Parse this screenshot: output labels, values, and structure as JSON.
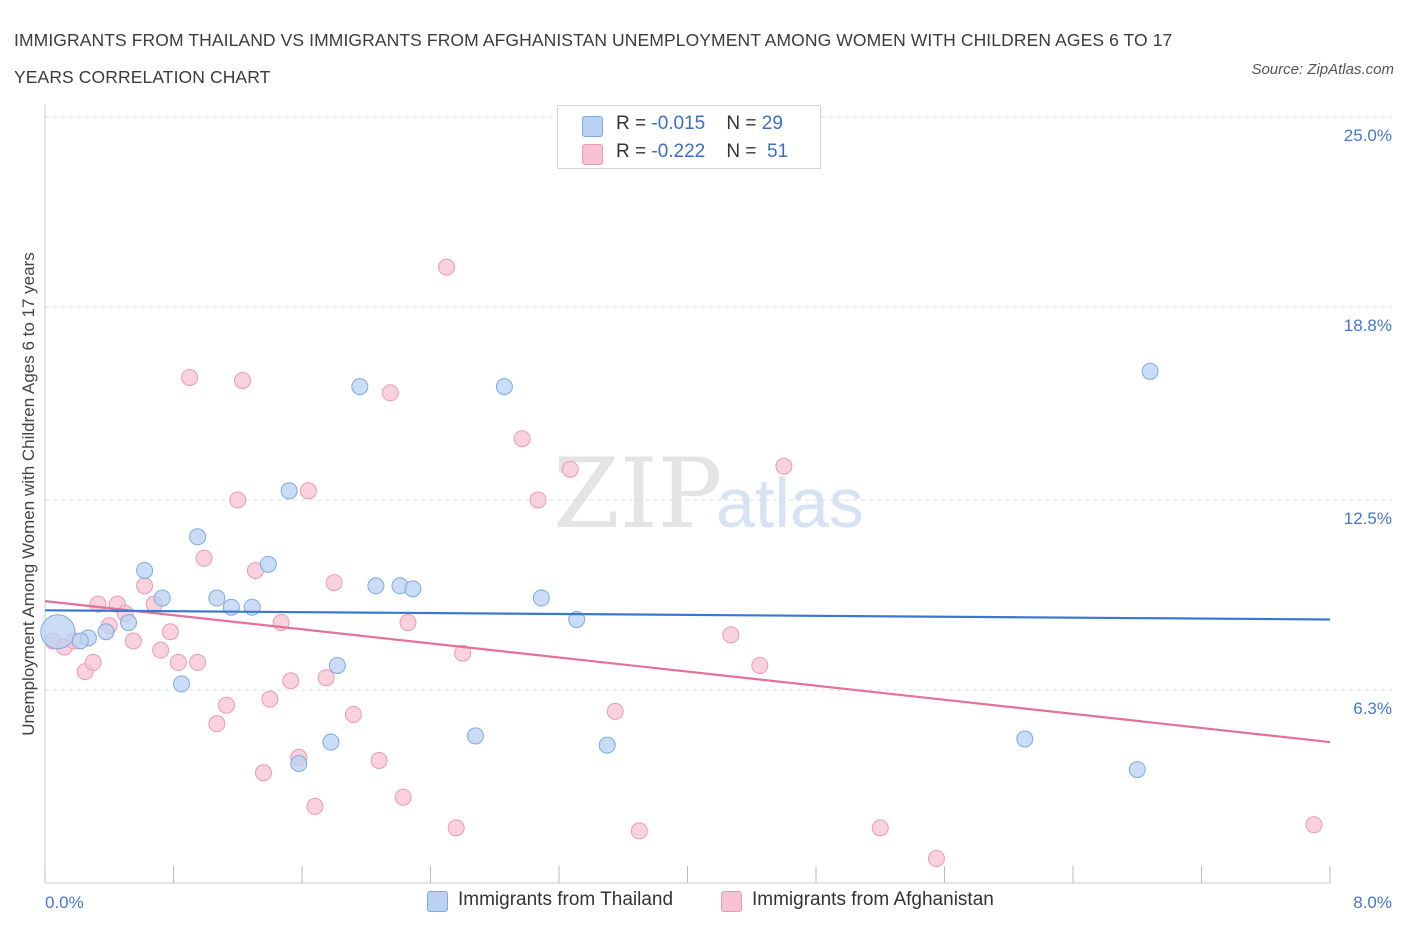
{
  "title": "IMMIGRANTS FROM THAILAND VS IMMIGRANTS FROM AFGHANISTAN UNEMPLOYMENT AMONG WOMEN WITH CHILDREN AGES 6 TO 17 YEARS CORRELATION CHART",
  "source": "Source: ZipAtlas.com",
  "watermark": {
    "zip": "ZIP",
    "atlas": "atlas"
  },
  "legend_top": {
    "rows": [
      {
        "r_label": "R = ",
        "r_value": "-0.015",
        "n_label": "N = ",
        "n_value": "29"
      },
      {
        "r_label": "R = ",
        "r_value": "-0.222",
        "n_label": "N = ",
        "n_value": "51"
      }
    ]
  },
  "legend_bottom": [
    "Immigrants from Thailand",
    "Immigrants from Afghanistan"
  ],
  "colors": {
    "thailand_fill": "#b9d2f3",
    "thailand_stroke": "#7fa9e0",
    "thailand_line": "#3a78d0",
    "afghanistan_fill": "#f7c3d3",
    "afghanistan_stroke": "#eb9ab4",
    "afghanistan_line": "#e5709b",
    "tick_text": "#4477cc",
    "grid": "#dddddd"
  },
  "chart_data": {
    "type": "scatter",
    "title": "IMMIGRANTS FROM THAILAND VS IMMIGRANTS FROM AFGHANISTAN UNEMPLOYMENT AMONG WOMEN WITH CHILDREN AGES 6 TO 17 YEARS CORRELATION CHART",
    "xlabel": "",
    "ylabel": "Unemployment Among Women with Children Ages 6 to 17 years",
    "xlim": [
      0,
      8
    ],
    "ylim": [
      0,
      25
    ],
    "x_tick_labels": [
      "0.0%",
      "8.0%"
    ],
    "y_ticks": [
      6.3,
      12.5,
      18.8,
      25.0
    ],
    "y_tick_labels": [
      "6.3%",
      "12.5%",
      "18.8%",
      "25.0%"
    ],
    "grid": "horizontal dashed",
    "legend": "top-center",
    "series": [
      {
        "name": "Immigrants from Thailand",
        "R": -0.015,
        "N": 29,
        "trend": [
          [
            0,
            8.9
          ],
          [
            8,
            8.6
          ]
        ],
        "points": [
          {
            "x": 0.08,
            "y": 8.2,
            "big": true
          },
          {
            "x": 0.27,
            "y": 8.0
          },
          {
            "x": 0.38,
            "y": 8.2
          },
          {
            "x": 0.52,
            "y": 8.5
          },
          {
            "x": 0.62,
            "y": 10.2
          },
          {
            "x": 0.73,
            "y": 9.3
          },
          {
            "x": 0.85,
            "y": 6.5
          },
          {
            "x": 0.95,
            "y": 11.3
          },
          {
            "x": 1.07,
            "y": 9.3
          },
          {
            "x": 1.16,
            "y": 9.0
          },
          {
            "x": 1.29,
            "y": 9.0
          },
          {
            "x": 1.39,
            "y": 10.4
          },
          {
            "x": 1.52,
            "y": 12.8
          },
          {
            "x": 1.58,
            "y": 3.9
          },
          {
            "x": 1.82,
            "y": 7.1
          },
          {
            "x": 1.78,
            "y": 4.6
          },
          {
            "x": 1.96,
            "y": 16.2
          },
          {
            "x": 2.06,
            "y": 9.7
          },
          {
            "x": 2.21,
            "y": 9.7
          },
          {
            "x": 2.29,
            "y": 9.6
          },
          {
            "x": 2.68,
            "y": 4.8
          },
          {
            "x": 2.86,
            "y": 16.2
          },
          {
            "x": 3.09,
            "y": 9.3
          },
          {
            "x": 3.31,
            "y": 8.6
          },
          {
            "x": 3.5,
            "y": 4.5
          },
          {
            "x": 6.1,
            "y": 4.7
          },
          {
            "x": 6.8,
            "y": 3.7
          },
          {
            "x": 6.88,
            "y": 16.7
          },
          {
            "x": 0.22,
            "y": 7.9
          }
        ]
      },
      {
        "name": "Immigrants from Afghanistan",
        "R": -0.222,
        "N": 51,
        "trend": [
          [
            0,
            9.2
          ],
          [
            8,
            4.6
          ]
        ],
        "points": [
          {
            "x": 0.05,
            "y": 7.9
          },
          {
            "x": 0.12,
            "y": 7.7
          },
          {
            "x": 0.18,
            "y": 7.9
          },
          {
            "x": 0.25,
            "y": 6.9
          },
          {
            "x": 0.3,
            "y": 7.2
          },
          {
            "x": 0.33,
            "y": 9.1
          },
          {
            "x": 0.4,
            "y": 8.4
          },
          {
            "x": 0.45,
            "y": 9.1
          },
          {
            "x": 0.5,
            "y": 8.8
          },
          {
            "x": 0.55,
            "y": 7.9
          },
          {
            "x": 0.62,
            "y": 9.7
          },
          {
            "x": 0.68,
            "y": 9.1
          },
          {
            "x": 0.72,
            "y": 7.6
          },
          {
            "x": 0.78,
            "y": 8.2
          },
          {
            "x": 0.83,
            "y": 7.2
          },
          {
            "x": 0.9,
            "y": 16.5
          },
          {
            "x": 0.95,
            "y": 7.2
          },
          {
            "x": 0.99,
            "y": 10.6
          },
          {
            "x": 1.07,
            "y": 5.2
          },
          {
            "x": 1.13,
            "y": 5.8
          },
          {
            "x": 1.2,
            "y": 12.5
          },
          {
            "x": 1.23,
            "y": 16.4
          },
          {
            "x": 1.31,
            "y": 10.2
          },
          {
            "x": 1.36,
            "y": 3.6
          },
          {
            "x": 1.4,
            "y": 6.0
          },
          {
            "x": 1.47,
            "y": 8.5
          },
          {
            "x": 1.53,
            "y": 6.6
          },
          {
            "x": 1.58,
            "y": 4.1
          },
          {
            "x": 1.64,
            "y": 12.8
          },
          {
            "x": 1.68,
            "y": 2.5
          },
          {
            "x": 1.75,
            "y": 6.7
          },
          {
            "x": 1.8,
            "y": 9.8
          },
          {
            "x": 1.92,
            "y": 5.5
          },
          {
            "x": 2.08,
            "y": 4.0
          },
          {
            "x": 2.15,
            "y": 16.0
          },
          {
            "x": 2.23,
            "y": 2.8
          },
          {
            "x": 2.26,
            "y": 8.5
          },
          {
            "x": 2.5,
            "y": 20.1
          },
          {
            "x": 2.56,
            "y": 1.8
          },
          {
            "x": 2.6,
            "y": 7.5
          },
          {
            "x": 2.97,
            "y": 14.5
          },
          {
            "x": 3.07,
            "y": 12.5
          },
          {
            "x": 3.27,
            "y": 13.5
          },
          {
            "x": 3.55,
            "y": 5.6
          },
          {
            "x": 3.7,
            "y": 1.7
          },
          {
            "x": 4.27,
            "y": 8.1
          },
          {
            "x": 4.45,
            "y": 7.1
          },
          {
            "x": 4.6,
            "y": 13.6
          },
          {
            "x": 5.2,
            "y": 1.8
          },
          {
            "x": 5.55,
            "y": 0.8
          },
          {
            "x": 7.9,
            "y": 1.9
          }
        ]
      }
    ]
  }
}
